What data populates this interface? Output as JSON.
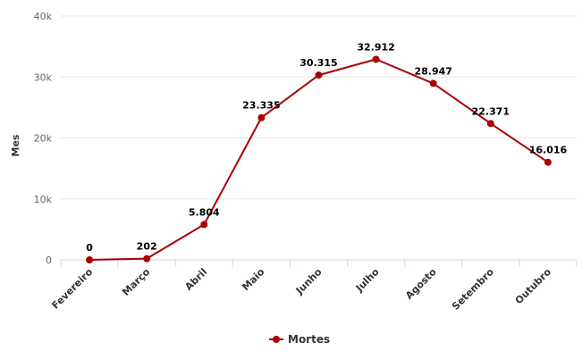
{
  "chart_data": {
    "type": "line",
    "title": "",
    "xlabel": "",
    "ylabel": "Mes",
    "categories": [
      "Fevereiro",
      "Março",
      "Abril",
      "Maio",
      "Junho",
      "Julho",
      "Agosto",
      "Setembro",
      "Outubro"
    ],
    "series": [
      {
        "name": "Mortes",
        "values": [
          0,
          202,
          5804,
          23335,
          30315,
          32912,
          28947,
          22371,
          16016
        ],
        "labels": [
          "0",
          "202",
          "5.804",
          "23.335",
          "30.315",
          "32.912",
          "28.947",
          "22.371",
          "16.016"
        ],
        "color": "#aa0000"
      }
    ],
    "ylim": [
      0,
      40000
    ],
    "yticks": [
      0,
      10000,
      20000,
      30000,
      40000
    ],
    "ytick_labels": [
      "0",
      "10k",
      "20k",
      "30k",
      "40k"
    ],
    "grid": true,
    "legend": "bottom-center"
  }
}
